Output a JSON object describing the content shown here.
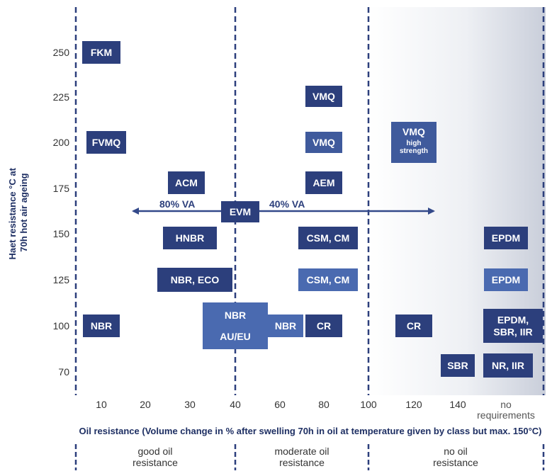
{
  "chart_data": {
    "type": "scatter",
    "xlabel": "Oil resistance (Volume change in % after swelling 70h in oil at temperature given by class but max. 150°C)",
    "ylabel_lines": [
      "Haet resistance °C at",
      "70h hot air ageing"
    ],
    "x_ticks": [
      "10",
      "20",
      "30",
      "40",
      "60",
      "80",
      "100",
      "120",
      "140"
    ],
    "x_tick_extra": [
      "no",
      "requirements"
    ],
    "y_ticks": [
      250,
      225,
      200,
      175,
      150,
      125,
      100,
      70
    ],
    "zones": [
      {
        "lines": [
          "good oil",
          "resistance"
        ]
      },
      {
        "lines": [
          "moderate oil",
          "resistance"
        ]
      },
      {
        "lines": [
          "no oil",
          "resistance"
        ]
      }
    ],
    "arrow": {
      "left_label": "80% VA",
      "right_label": "40% VA"
    },
    "materials": [
      {
        "lines": [
          "FKM"
        ],
        "x": "10",
        "y": 250,
        "color": "#2c3f7c"
      },
      {
        "lines": [
          "VMQ"
        ],
        "x": "80",
        "y": 225,
        "color": "#2c3f7c"
      },
      {
        "lines": [
          "FVMQ"
        ],
        "x": "10",
        "y": 200,
        "color": "#2c3f7c"
      },
      {
        "lines": [
          "VMQ"
        ],
        "x": "80",
        "y": 200,
        "color": "#3f5a9c"
      },
      {
        "lines": [
          "VMQ",
          "high",
          "strength"
        ],
        "x": "120",
        "y": 200,
        "color": "#3f5a9c"
      },
      {
        "lines": [
          "ACM"
        ],
        "x": "30",
        "y": 175,
        "color": "#2c3f7c"
      },
      {
        "lines": [
          "AEM"
        ],
        "x": "80",
        "y": 175,
        "color": "#2c3f7c"
      },
      {
        "lines": [
          "EVM"
        ],
        "x": "40",
        "y": 162,
        "color": "#2c3f7c"
      },
      {
        "lines": [
          "HNBR"
        ],
        "x": "30",
        "y": 150,
        "color": "#2c3f7c"
      },
      {
        "lines": [
          "CSM, CM"
        ],
        "x": "80",
        "y": 150,
        "color": "#2c3f7c"
      },
      {
        "lines": [
          "EPDM"
        ],
        "x": "no requirements",
        "y": 150,
        "color": "#2c3f7c"
      },
      {
        "lines": [
          "NBR, ECO"
        ],
        "x": "30",
        "y": 125,
        "color": "#2c3f7c"
      },
      {
        "lines": [
          "CSM, CM"
        ],
        "x": "80",
        "y": 125,
        "color": "#4a6ab0"
      },
      {
        "lines": [
          "EPDM"
        ],
        "x": "no requirements",
        "y": 125,
        "color": "#4a6ab0"
      },
      {
        "lines": [
          "NBR"
        ],
        "x": "10",
        "y": 100,
        "color": "#2c3f7c"
      },
      {
        "lines": [
          "NBR",
          "AU/EU"
        ],
        "x": "40",
        "y": 100,
        "color": "#4a6ab0"
      },
      {
        "lines": [
          "NBR"
        ],
        "x": "60",
        "y": 100,
        "color": "#4a6ab0"
      },
      {
        "lines": [
          "CR"
        ],
        "x": "80",
        "y": 100,
        "color": "#2c3f7c"
      },
      {
        "lines": [
          "CR"
        ],
        "x": "120",
        "y": 100,
        "color": "#2c3f7c"
      },
      {
        "lines": [
          "EPDM,",
          "SBR, IIR"
        ],
        "x": "no requirements",
        "y": 100,
        "color": "#2c3f7c"
      },
      {
        "lines": [
          "SBR"
        ],
        "x": "140",
        "y": 70,
        "color": "#2c3f7c"
      },
      {
        "lines": [
          "NR, IIR"
        ],
        "x": "no requirements",
        "y": 70,
        "color": "#2c3f7c"
      }
    ]
  }
}
